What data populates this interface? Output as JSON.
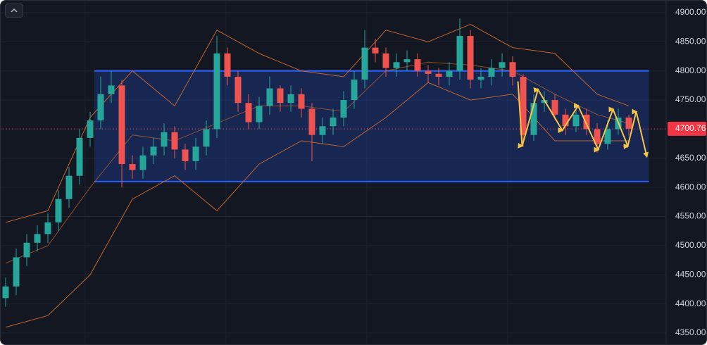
{
  "chart_data": {
    "type": "candlestick",
    "ylim": [
      4330.7,
      4920.5
    ],
    "yticks": [
      {
        "value": 4350,
        "label": "4350.00"
      },
      {
        "value": 4400,
        "label": "4400.00"
      },
      {
        "value": 4450,
        "label": "4450.00"
      },
      {
        "value": 4500,
        "label": "4500.00"
      },
      {
        "value": 4550,
        "label": "4550.00"
      },
      {
        "value": 4600,
        "label": "4600.00"
      },
      {
        "value": 4650,
        "label": "4650.00"
      },
      {
        "value": 4700,
        "label": "4700.00"
      },
      {
        "value": 4750,
        "label": "4750.00"
      },
      {
        "value": 4800,
        "label": "4800.00"
      },
      {
        "value": 4850,
        "label": "4850.00"
      },
      {
        "value": 4900,
        "label": "4900.00"
      }
    ],
    "grid": true,
    "up_color": "#26a69a",
    "down_color": "#ef5350",
    "candles": {
      "open": [
        4410,
        4430,
        4480,
        4505,
        4520,
        4540,
        4580,
        4620,
        4685,
        4715,
        4760,
        4775,
        4640,
        4630,
        4655,
        4670,
        4695,
        4665,
        4645,
        4670,
        4700,
        4830,
        4790,
        4745,
        4712,
        4740,
        4770,
        4745,
        4760,
        4735,
        4690,
        4705,
        4720,
        4750,
        4785,
        4840,
        4830,
        4805,
        4815,
        4820,
        4800,
        4795,
        4790,
        4800,
        4860,
        4785,
        4790,
        4805,
        4815,
        4790,
        4690,
        4745,
        4750,
        4725,
        4705,
        4725,
        4700,
        4675,
        4700,
        4720
      ],
      "high": [
        4445,
        4495,
        4520,
        4535,
        4555,
        4595,
        4635,
        4700,
        4730,
        4790,
        4800,
        4785,
        4655,
        4670,
        4685,
        4710,
        4705,
        4675,
        4685,
        4715,
        4860,
        4840,
        4800,
        4760,
        4755,
        4790,
        4775,
        4775,
        4770,
        4745,
        4720,
        4735,
        4765,
        4800,
        4870,
        4855,
        4840,
        4830,
        4835,
        4830,
        4810,
        4805,
        4815,
        4890,
        4870,
        4805,
        4820,
        4830,
        4825,
        4795,
        4760,
        4765,
        4760,
        4735,
        4740,
        4735,
        4710,
        4715,
        4735,
        4725
      ],
      "low": [
        4395,
        4415,
        4465,
        4490,
        4505,
        4525,
        4565,
        4605,
        4670,
        4700,
        4745,
        4600,
        4615,
        4615,
        4640,
        4655,
        4650,
        4630,
        4630,
        4655,
        4685,
        4775,
        4730,
        4700,
        4700,
        4725,
        4730,
        4730,
        4720,
        4645,
        4675,
        4690,
        4705,
        4735,
        4770,
        4815,
        4790,
        4790,
        4800,
        4790,
        4780,
        4775,
        4775,
        4785,
        4770,
        4770,
        4775,
        4790,
        4775,
        4670,
        4680,
        4730,
        4715,
        4690,
        4695,
        4690,
        4660,
        4665,
        4690,
        4690
      ],
      "close": [
        4430,
        4480,
        4505,
        4520,
        4540,
        4580,
        4620,
        4685,
        4715,
        4760,
        4775,
        4640,
        4630,
        4655,
        4670,
        4695,
        4665,
        4645,
        4670,
        4700,
        4830,
        4790,
        4745,
        4712,
        4740,
        4770,
        4745,
        4760,
        4735,
        4690,
        4705,
        4720,
        4750,
        4785,
        4840,
        4830,
        4805,
        4815,
        4820,
        4800,
        4795,
        4790,
        4800,
        4860,
        4785,
        4790,
        4805,
        4815,
        4790,
        4690,
        4745,
        4750,
        4725,
        4705,
        4725,
        4700,
        4675,
        4700,
        4720,
        4700.76
      ]
    },
    "bands": {
      "color": "#c0652e",
      "x": [
        0,
        4,
        8,
        12,
        16,
        20,
        24,
        28,
        32,
        36,
        40,
        44,
        48,
        52,
        56,
        59
      ],
      "upper": [
        4540,
        4560,
        4720,
        4800,
        4740,
        4870,
        4830,
        4800,
        4790,
        4870,
        4850,
        4880,
        4840,
        4830,
        4760,
        4740
      ],
      "middle": [
        4470,
        4500,
        4600,
        4690,
        4680,
        4710,
        4740,
        4740,
        4730,
        4800,
        4815,
        4810,
        4800,
        4760,
        4725,
        4710
      ],
      "lower": [
        4360,
        4380,
        4450,
        4580,
        4620,
        4560,
        4640,
        4680,
        4670,
        4720,
        4780,
        4750,
        4760,
        4680,
        4680,
        4680
      ]
    },
    "range_box": {
      "top": 4800,
      "bottom": 4610,
      "x_start": 8.4,
      "x_end": 60.9,
      "color": "#2962ff"
    },
    "zigzag": {
      "color": "#f7c545",
      "x": [
        48.5,
        48.9,
        50.4,
        52.7,
        54.2,
        56.1,
        57.5,
        58.9,
        59.7,
        60.7
      ],
      "y": [
        4782,
        4671,
        4768,
        4698,
        4740,
        4665,
        4734,
        4671,
        4730,
        4653
      ]
    },
    "last_price": 4700.76,
    "last_price_color": "#f23645"
  }
}
